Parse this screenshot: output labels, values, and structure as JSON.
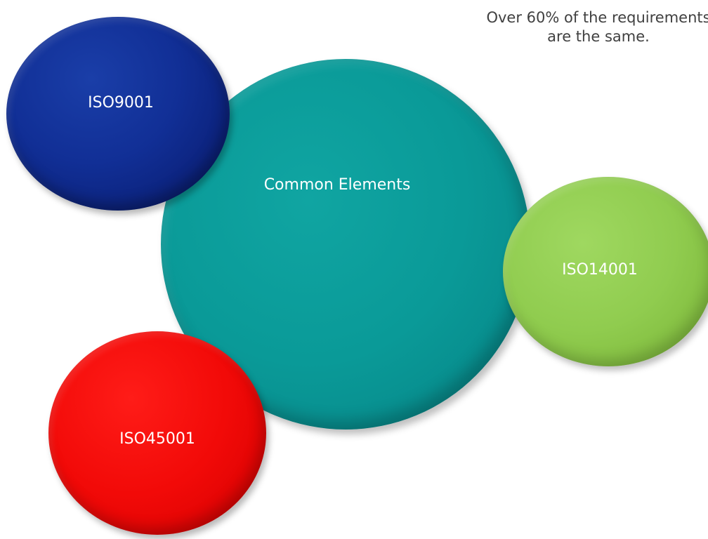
{
  "caption": {
    "line1": "Over 60% of the requirements",
    "line2": "are the same."
  },
  "bubbles": {
    "iso9001": {
      "label": "ISO9001",
      "color": "#112f96"
    },
    "common": {
      "label": "Common Elements",
      "color": "#0a9a98"
    },
    "iso14001": {
      "label": "ISO14001",
      "color": "#90cc4f"
    },
    "iso45001": {
      "label": "ISO45001",
      "color": "#f20a08"
    }
  }
}
